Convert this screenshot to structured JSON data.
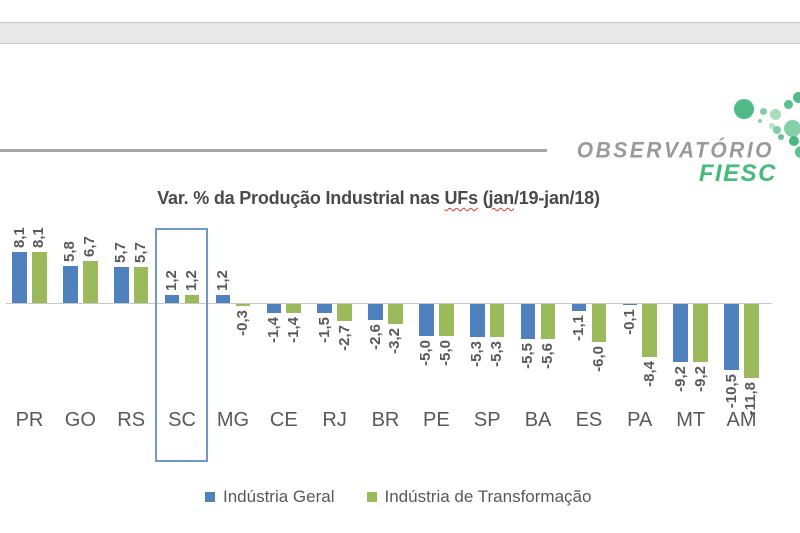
{
  "logo": {
    "brand": "OBSERVATÓRIO",
    "sub": "FIESC",
    "brand_color": "#9a9a9a",
    "sub_color": "#47ba7e"
  },
  "title": {
    "part1": "Var. % da Produção Industrial nas ",
    "ufs": "UFs",
    "part2": " (",
    "jan": "jan",
    "part3": "/19-jan/18)"
  },
  "chart_data": {
    "type": "bar",
    "title": "Var. % da Produção Industrial nas UFs (jan/19-jan/18)",
    "categories": [
      "PR",
      "GO",
      "RS",
      "SC",
      "MG",
      "CE",
      "RJ",
      "BR",
      "PE",
      "SP",
      "BA",
      "ES",
      "PA",
      "MT",
      "AM"
    ],
    "series": [
      {
        "name": "Indústria Geral",
        "color": "#4e81bd",
        "values": [
          8.1,
          5.8,
          5.7,
          1.2,
          1.2,
          -1.4,
          -1.5,
          -2.6,
          -5.0,
          -5.3,
          -5.5,
          -1.1,
          -0.1,
          -9.2,
          -10.5
        ]
      },
      {
        "name": "Indústria de Transformação",
        "color": "#9aba5c",
        "values": [
          8.1,
          6.7,
          5.7,
          1.2,
          -0.3,
          -1.4,
          -2.7,
          -3.2,
          -5.0,
          -5.3,
          -5.6,
          -6.0,
          -8.4,
          -9.2,
          -11.8
        ]
      }
    ],
    "highlighted_category": "SC",
    "decimal_separator": ",",
    "ylim": [
      -12,
      9
    ],
    "grid": "off",
    "legend_position": "bottom",
    "value_labels": "rotated-90",
    "zero_line_color": "#c8c8c8",
    "highlight_box_color": "#6f9ac8"
  }
}
